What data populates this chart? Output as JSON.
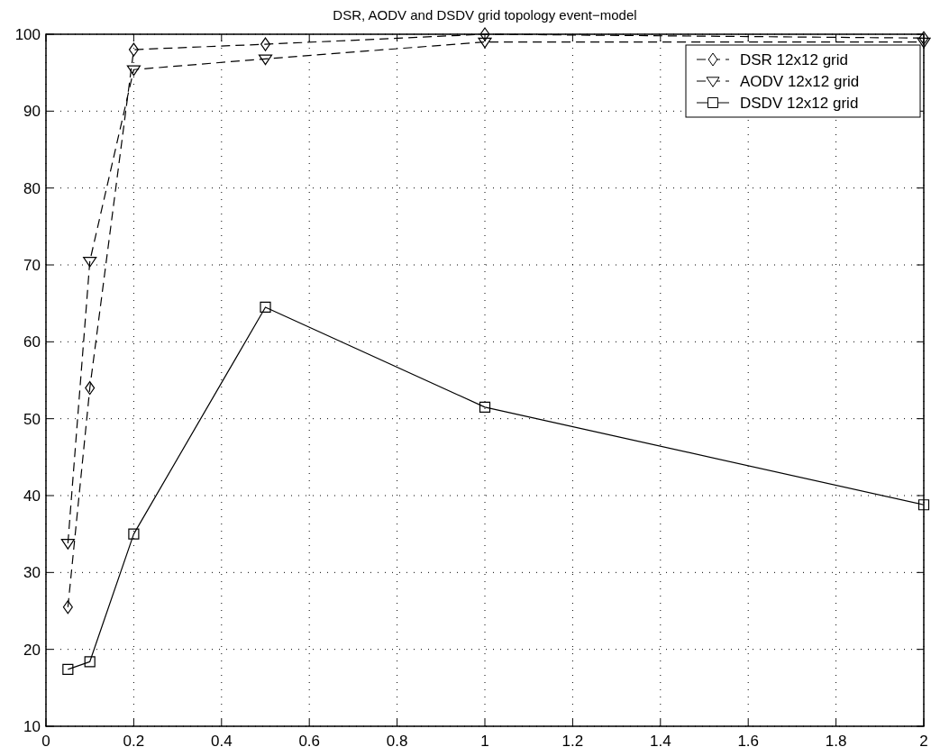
{
  "chart_data": {
    "type": "line",
    "title": "DSR, AODV and DSDV grid topology event−model",
    "x": [
      0.05,
      0.1,
      0.2,
      0.5,
      1,
      2
    ],
    "series": [
      {
        "name": "DSR 12x12 grid",
        "color": "#000000",
        "values": [
          25.5,
          54,
          98,
          98.7,
          100,
          99.5
        ],
        "marker": "diamond",
        "line_style": "dashed"
      },
      {
        "name": "AODV 12x12 grid",
        "color": "#000000",
        "values": [
          33.8,
          70.5,
          95.4,
          96.8,
          99,
          99
        ],
        "marker": "triangle",
        "line_style": "dashed"
      },
      {
        "name": "DSDV 12x12 grid",
        "color": "#000000",
        "values": [
          17.4,
          18.4,
          35,
          64.5,
          51.5,
          38.8
        ],
        "marker": "square",
        "line_style": "solid"
      }
    ],
    "xlim": [
      0,
      2
    ],
    "xticks": [
      0,
      0.2,
      0.4,
      0.6,
      0.8,
      1,
      1.2,
      1.4,
      1.6,
      1.8,
      2
    ],
    "ylim": [
      10,
      100
    ],
    "yticks": [
      10,
      20,
      30,
      40,
      50,
      60,
      70,
      80,
      90,
      100
    ],
    "grid": true,
    "legend": "top right"
  }
}
